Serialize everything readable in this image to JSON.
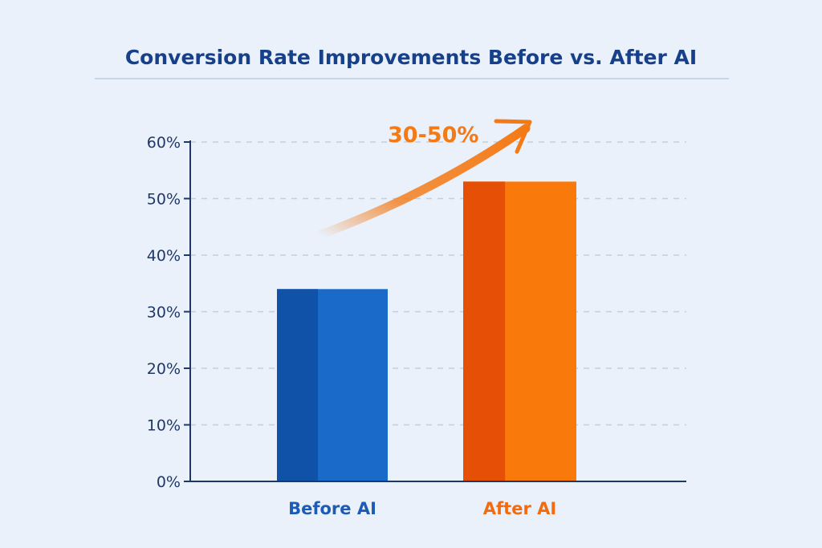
{
  "chart_data": {
    "type": "bar",
    "title": "Conversion Rate Improvements Before vs. After AI",
    "categories": [
      "Before AI",
      "After AI"
    ],
    "values": [
      34,
      53
    ],
    "unit": "%",
    "ylim": [
      0,
      60
    ],
    "yticks": [
      0,
      10,
      20,
      30,
      40,
      50,
      60
    ],
    "ytick_labels": [
      "0%",
      "10%",
      "20%",
      "30%",
      "40%",
      "50%",
      "60%"
    ],
    "grid": "horizontal-dashed",
    "colors": {
      "before": "#1a6ac9",
      "before_shade": "#0f52a8",
      "after": "#f97a0a",
      "after_shade": "#e54f06",
      "title": "#17408a",
      "axis": "#1f3868"
    },
    "annotation": {
      "text": "30-50%",
      "icon": "arrow-up-right-icon"
    }
  }
}
